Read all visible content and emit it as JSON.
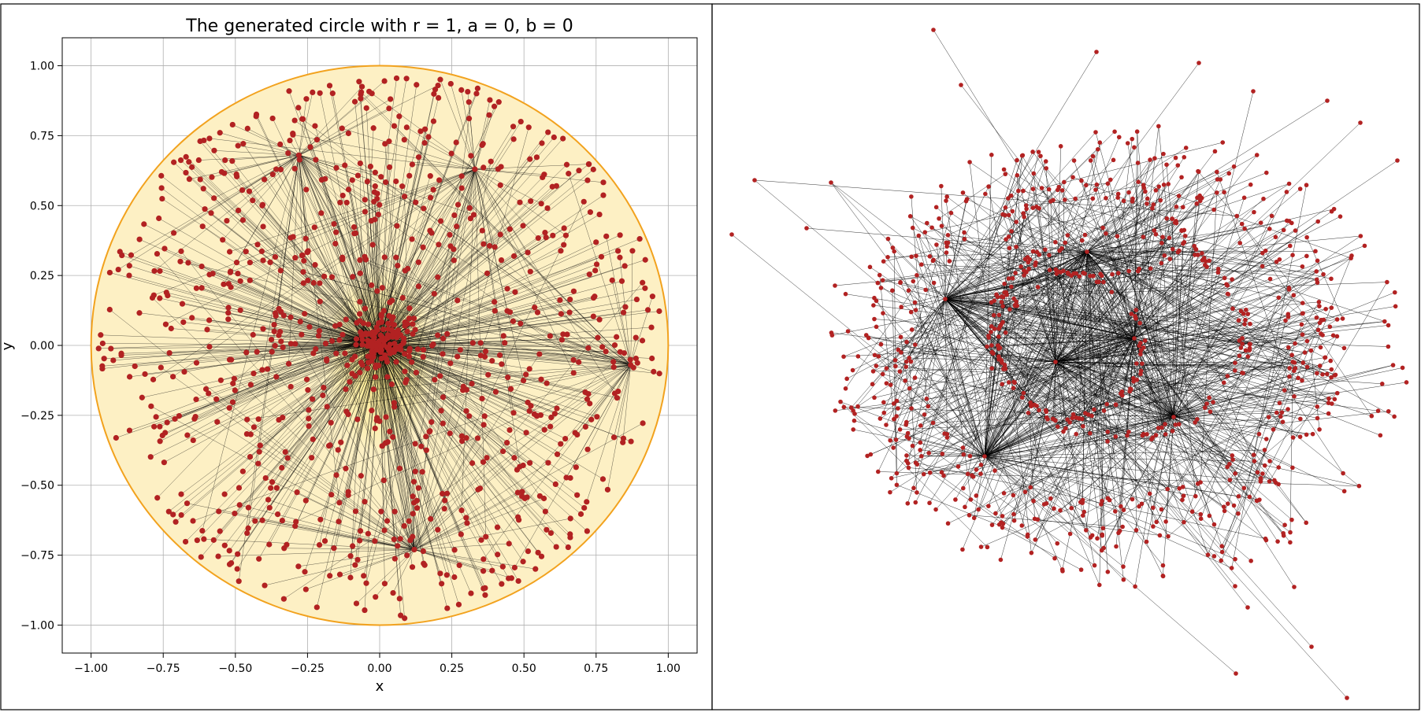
{
  "chart_data": [
    {
      "type": "scatter",
      "title": "The generated circle with r = 1, a = 0, b = 0",
      "xlabel": "x",
      "ylabel": "y",
      "xlim": [
        -1.1,
        1.1
      ],
      "ylim": [
        -1.1,
        1.1
      ],
      "xticks": [
        -1.0,
        -0.75,
        -0.5,
        -0.25,
        0.0,
        0.25,
        0.5,
        0.75,
        1.0
      ],
      "yticks": [
        -1.0,
        -0.75,
        -0.5,
        -0.25,
        0.0,
        0.25,
        0.5,
        0.75,
        1.0
      ],
      "xtick_labels": [
        "−1.00",
        "−0.75",
        "−0.50",
        "−0.25",
        "0.00",
        "0.25",
        "0.50",
        "0.75",
        "1.00"
      ],
      "ytick_labels": [
        "−1.00",
        "−0.75",
        "−0.50",
        "−0.25",
        "0.00",
        "0.25",
        "0.50",
        "0.75",
        "1.00"
      ],
      "grid": true,
      "circle": {
        "r": 1,
        "a": 0,
        "b": 0,
        "fill": "#fdf0c4",
        "edge": "#f2a21e"
      },
      "hubs": [
        {
          "x": 0.0,
          "y": 0.0
        },
        {
          "x": -0.28,
          "y": 0.68
        },
        {
          "x": 0.33,
          "y": 0.63
        },
        {
          "x": 0.12,
          "y": -0.73
        },
        {
          "x": 0.87,
          "y": -0.07
        },
        {
          "x": -0.06,
          "y": 0.02
        }
      ],
      "point_color": "#b22222",
      "edge_color": "#000000",
      "approx_nodes": 1000
    },
    {
      "type": "network",
      "title": "",
      "node_color": "#b22222",
      "edge_color": "#000000",
      "approx_nodes": 1000
    }
  ]
}
